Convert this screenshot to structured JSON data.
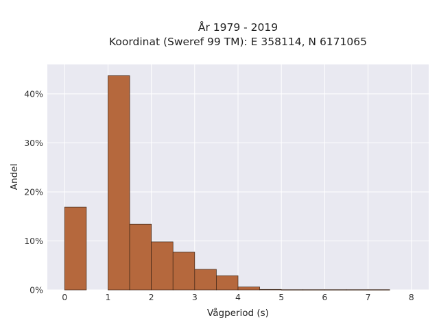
{
  "chart_data": {
    "type": "bar",
    "title_lines": [
      "År 1979 - 2019",
      "Koordinat (Sweref 99 TM): E 358114, N 6171065"
    ],
    "xlabel": "Vågperiod (s)",
    "ylabel": "Andel",
    "xlim": [
      -0.4,
      8.4
    ],
    "ylim": [
      0,
      46
    ],
    "x_ticks": [
      0,
      1,
      2,
      3,
      4,
      5,
      6,
      7,
      8
    ],
    "x_tick_labels": [
      "0",
      "1",
      "2",
      "3",
      "4",
      "5",
      "6",
      "7",
      "8"
    ],
    "y_ticks": [
      0,
      10,
      20,
      30,
      40
    ],
    "y_tick_labels": [
      "0%",
      "10%",
      "20%",
      "30%",
      "40%"
    ],
    "grid": true,
    "bar_width": 0.5,
    "bars": [
      {
        "x": 0.0,
        "value": 16.9
      },
      {
        "x": 1.0,
        "value": 43.7
      },
      {
        "x": 1.5,
        "value": 13.4
      },
      {
        "x": 2.0,
        "value": 9.8
      },
      {
        "x": 2.5,
        "value": 7.7
      },
      {
        "x": 3.0,
        "value": 4.2
      },
      {
        "x": 3.5,
        "value": 2.9
      },
      {
        "x": 4.0,
        "value": 0.6
      },
      {
        "x": 4.5,
        "value": 0.1
      },
      {
        "x": 5.0,
        "value": 0.05
      },
      {
        "x": 5.5,
        "value": 0.05
      },
      {
        "x": 6.0,
        "value": 0.05
      },
      {
        "x": 6.5,
        "value": 0.05
      },
      {
        "x": 7.0,
        "value": 0.05
      }
    ],
    "colors": {
      "bar_fill": "#b5683d",
      "bar_stroke": "#3d2617",
      "plot_background": "#e9e9f1",
      "grid": "#ffffff"
    }
  }
}
